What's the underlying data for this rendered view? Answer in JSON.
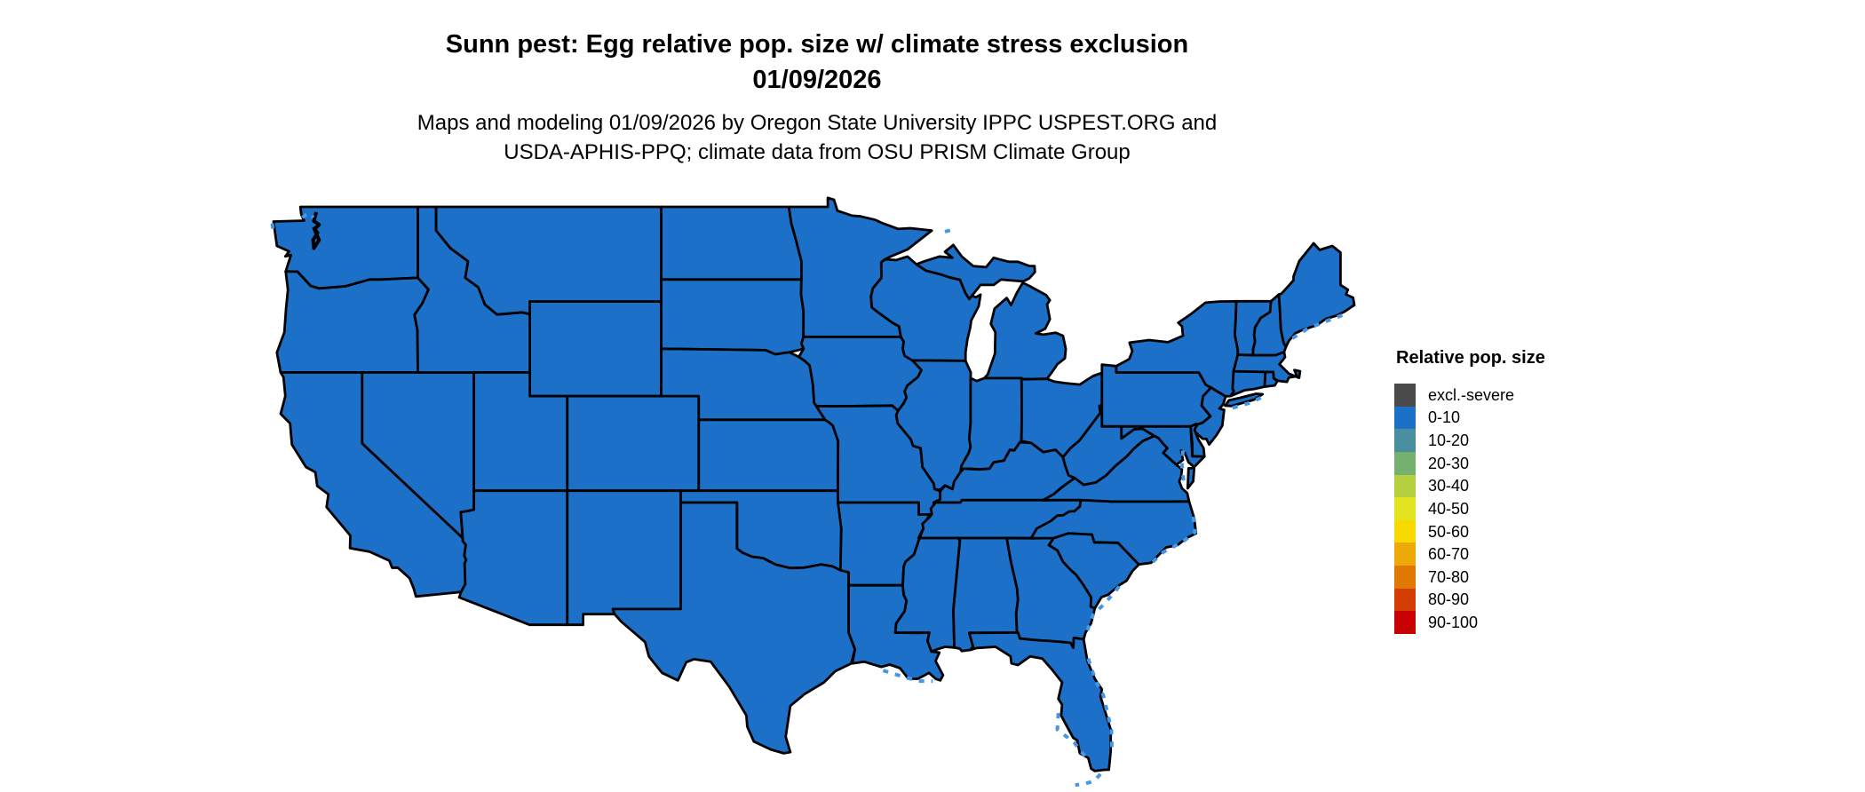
{
  "title": {
    "line1": "Sunn pest: Egg relative pop. size w/ climate stress exclusion",
    "line2": "01/09/2026"
  },
  "subtitle": {
    "line1": "Maps and modeling 01/09/2026 by Oregon State University IPPC USPEST.ORG and",
    "line2": "USDA-APHIS-PPQ; climate data from OSU PRISM Climate Group"
  },
  "legend": {
    "title": "Relative pop. size",
    "entries": [
      {
        "label": "excl.-severe",
        "color": "#4a4a4a"
      },
      {
        "label": "0-10",
        "color": "#1c70c8"
      },
      {
        "label": "10-20",
        "color": "#4a8fa0"
      },
      {
        "label": "20-30",
        "color": "#76b06e"
      },
      {
        "label": "30-40",
        "color": "#b4d03f"
      },
      {
        "label": "40-50",
        "color": "#e2e41f"
      },
      {
        "label": "50-60",
        "color": "#f8d900"
      },
      {
        "label": "60-70",
        "color": "#edaa06"
      },
      {
        "label": "70-80",
        "color": "#e17803"
      },
      {
        "label": "80-90",
        "color": "#d43d02"
      },
      {
        "label": "90-100",
        "color": "#c90002"
      }
    ]
  },
  "map": {
    "fill_class_label": "0-10",
    "state_fill_color": "#1c70c8",
    "state_border_color": "#000000",
    "coastal_fringe_color": "#4597e6",
    "background_color": "#ffffff"
  }
}
